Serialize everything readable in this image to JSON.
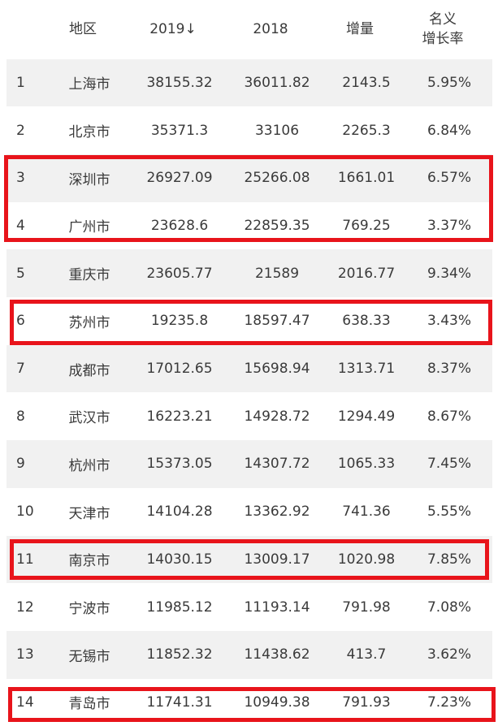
{
  "header": {
    "region": "地区",
    "y2019": "2019↓",
    "y2018": "2018",
    "increase": "增量",
    "rate_line1": "名义",
    "rate_line2": "增长率"
  },
  "rows": [
    {
      "rank": "1",
      "city": "上海市",
      "v2019": "38155.32",
      "v2018": "36011.82",
      "inc": "2143.5",
      "rate": "5.95%"
    },
    {
      "rank": "2",
      "city": "北京市",
      "v2019": "35371.3",
      "v2018": "33106",
      "inc": "2265.3",
      "rate": "6.84%"
    },
    {
      "rank": "3",
      "city": "深圳市",
      "v2019": "26927.09",
      "v2018": "25266.08",
      "inc": "1661.01",
      "rate": "6.57%"
    },
    {
      "rank": "4",
      "city": "广州市",
      "v2019": "23628.6",
      "v2018": "22859.35",
      "inc": "769.25",
      "rate": "3.37%"
    },
    {
      "rank": "5",
      "city": "重庆市",
      "v2019": "23605.77",
      "v2018": "21589",
      "inc": "2016.77",
      "rate": "9.34%"
    },
    {
      "rank": "6",
      "city": "苏州市",
      "v2019": "19235.8",
      "v2018": "18597.47",
      "inc": "638.33",
      "rate": "3.43%"
    },
    {
      "rank": "7",
      "city": "成都市",
      "v2019": "17012.65",
      "v2018": "15698.94",
      "inc": "1313.71",
      "rate": "8.37%"
    },
    {
      "rank": "8",
      "city": "武汉市",
      "v2019": "16223.21",
      "v2018": "14928.72",
      "inc": "1294.49",
      "rate": "8.67%"
    },
    {
      "rank": "9",
      "city": "杭州市",
      "v2019": "15373.05",
      "v2018": "14307.72",
      "inc": "1065.33",
      "rate": "7.45%"
    },
    {
      "rank": "10",
      "city": "天津市",
      "v2019": "14104.28",
      "v2018": "13362.92",
      "inc": "741.36",
      "rate": "5.55%"
    },
    {
      "rank": "11",
      "city": "南京市",
      "v2019": "14030.15",
      "v2018": "13009.17",
      "inc": "1020.98",
      "rate": "7.85%"
    },
    {
      "rank": "12",
      "city": "宁波市",
      "v2019": "11985.12",
      "v2018": "11193.14",
      "inc": "791.98",
      "rate": "7.08%"
    },
    {
      "rank": "13",
      "city": "无锡市",
      "v2019": "11852.32",
      "v2018": "11438.62",
      "inc": "413.7",
      "rate": "3.62%"
    },
    {
      "rank": "14",
      "city": "青岛市",
      "v2019": "11741.31",
      "v2018": "10949.38",
      "inc": "791.93",
      "rate": "7.23%"
    }
  ],
  "highlight_color": "#e8141b",
  "shade_color": "#f1f1f1"
}
